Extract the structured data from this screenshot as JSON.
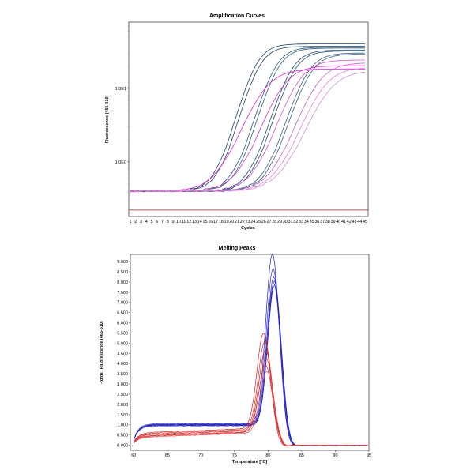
{
  "chart_data": [
    {
      "type": "line",
      "title": "Amplification Curves",
      "xlabel": "Cycles",
      "ylabel": "Fluorescence (465-510)",
      "y_scale": "log",
      "x_ticks": [
        "1",
        "2",
        "3",
        "4",
        "5",
        "6",
        "7",
        "8",
        "9",
        "10",
        "11",
        "12",
        "13",
        "14",
        "15",
        "16",
        "17",
        "18",
        "19",
        "20",
        "21",
        "22",
        "23",
        "24",
        "25",
        "26",
        "27",
        "28",
        "29",
        "30",
        "31",
        "32",
        "33",
        "34",
        "35",
        "36",
        "37",
        "38",
        "39",
        "40",
        "41",
        "42",
        "43",
        "44",
        "45"
      ],
      "y_ticks": [
        "1.0E0",
        "1.0E1"
      ],
      "xlim": [
        1,
        45
      ],
      "ylim": [
        0.18,
        80
      ],
      "threshold": 0.22,
      "baseline": 0.4,
      "series": [
        {
          "color": "#1f3f66",
          "ct": 21.5,
          "plateau": 40,
          "k": 0.62
        },
        {
          "color": "#1f3f66",
          "ct": 22.0,
          "plateau": 37,
          "k": 0.62
        },
        {
          "color": "#2a5a7a",
          "ct": 25.0,
          "plateau": 36,
          "k": 0.6
        },
        {
          "color": "#2a5a7a",
          "ct": 25.5,
          "plateau": 35,
          "k": 0.6
        },
        {
          "color": "#1f4a6a",
          "ct": 28.0,
          "plateau": 33,
          "k": 0.58
        },
        {
          "color": "#1f4a6a",
          "ct": 28.5,
          "plateau": 32,
          "k": 0.58
        },
        {
          "color": "#3a5f7f",
          "ct": 31.0,
          "plateau": 30,
          "k": 0.56
        },
        {
          "color": "#3a5f7f",
          "ct": 31.5,
          "plateau": 29,
          "k": 0.56
        },
        {
          "color": "#e020e0",
          "ct": 23.0,
          "plateau": 18,
          "k": 0.45
        },
        {
          "color": "#cc33cc",
          "ct": 26.5,
          "plateau": 20,
          "k": 0.48
        },
        {
          "color": "#d050d0",
          "ct": 29.5,
          "plateau": 24,
          "k": 0.5
        },
        {
          "color": "#c060c0",
          "ct": 33.0,
          "plateau": 22,
          "k": 0.48
        },
        {
          "color": "#e080e0",
          "ct": 34.0,
          "plateau": 19,
          "k": 0.46
        },
        {
          "color": "#d090d0",
          "ct": 35.0,
          "plateau": 17,
          "k": 0.44
        }
      ],
      "threshold_color": "#a02020"
    },
    {
      "type": "line",
      "title": "Melting Peaks",
      "xlabel": "Temperature [°C]",
      "ylabel": "-(d/dT) Fluorescence (465-510)",
      "x_ticks": [
        "60",
        "65",
        "70",
        "75",
        "80",
        "85",
        "90",
        "95"
      ],
      "y_ticks": [
        "0.000",
        "0.500",
        "1.000",
        "1.500",
        "2.000",
        "2.500",
        "3.000",
        "3.500",
        "4.000",
        "4.500",
        "5.000",
        "5.500",
        "6.000",
        "6.500",
        "7.000",
        "7.500",
        "8.000",
        "8.500",
        "9.000"
      ],
      "xlim": [
        59.5,
        95
      ],
      "ylim": [
        -0.25,
        9.35
      ],
      "series": [
        {
          "color": "#2020c0",
          "peak_t": 80.7,
          "peak": 9.0,
          "plateau": 1.05
        },
        {
          "color": "#3030d0",
          "peak_t": 80.8,
          "peak": 8.3,
          "plateau": 1.02
        },
        {
          "color": "#2a2ac8",
          "peak_t": 80.9,
          "peak": 7.9,
          "plateau": 1.0
        },
        {
          "color": "#1818b0",
          "peak_t": 81.0,
          "peak": 7.7,
          "plateau": 0.98
        },
        {
          "color": "#3a3ad8",
          "peak_t": 80.9,
          "peak": 7.6,
          "plateau": 0.97
        },
        {
          "color": "#2525c0",
          "peak_t": 81.0,
          "peak": 7.5,
          "plateau": 0.95
        },
        {
          "color": "#d02020",
          "peak_t": 79.4,
          "peak": 5.2,
          "plateau": 0.6
        },
        {
          "color": "#e03030",
          "peak_t": 79.6,
          "peak": 4.8,
          "plateau": 0.55
        },
        {
          "color": "#c81818",
          "peak_t": 79.7,
          "peak": 4.4,
          "plateau": 0.5
        },
        {
          "color": "#e04040",
          "peak_t": 79.8,
          "peak": 4.0,
          "plateau": 0.45
        },
        {
          "color": "#d82828",
          "peak_t": 79.7,
          "peak": 3.7,
          "plateau": 0.42
        },
        {
          "color": "#e05050",
          "peak_t": 79.9,
          "peak": 3.4,
          "plateau": 0.38
        }
      ]
    }
  ]
}
